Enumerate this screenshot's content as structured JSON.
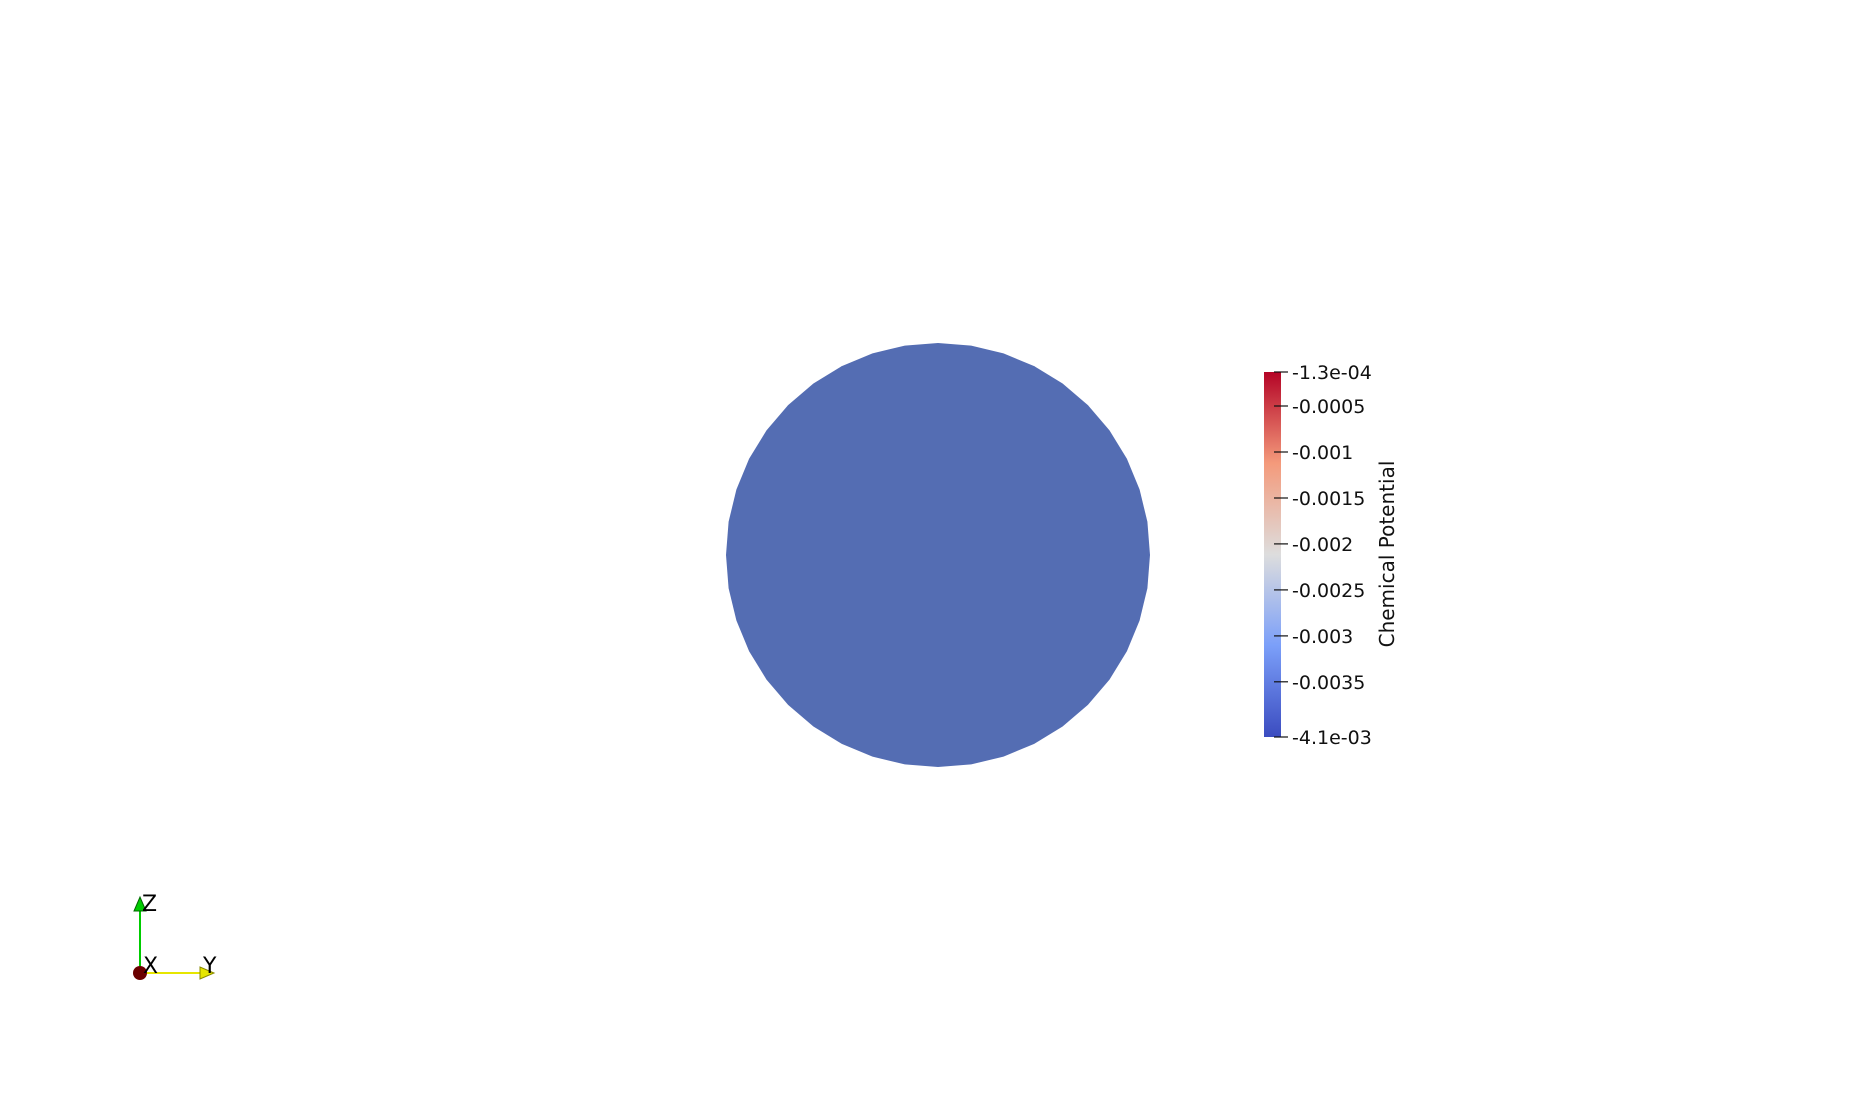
{
  "scene": {
    "background_color": "#ffffff",
    "surface_color": "#546db3",
    "surface_shape": "circular polygon"
  },
  "colorbar": {
    "title": "Chemical Potential",
    "range": [
      -0.0041,
      -0.00013
    ],
    "colormap": "coolwarm",
    "colors": {
      "min": "#3b4cc0",
      "mid": "#dddddd",
      "max": "#b40426"
    },
    "ticks": [
      {
        "value": -0.00013,
        "label": "-1.3e-04"
      },
      {
        "value": -0.0005,
        "label": "-0.0005"
      },
      {
        "value": -0.001,
        "label": "-0.001"
      },
      {
        "value": -0.0015,
        "label": "-0.0015"
      },
      {
        "value": -0.002,
        "label": "-0.002"
      },
      {
        "value": -0.0025,
        "label": "-0.0025"
      },
      {
        "value": -0.003,
        "label": "-0.003"
      },
      {
        "value": -0.0035,
        "label": "-0.0035"
      },
      {
        "value": -0.0041,
        "label": "-4.1e-03"
      }
    ]
  },
  "orientation_axes": {
    "z_label": "Z",
    "x_label": "X",
    "y_label": "Y",
    "colors": {
      "z": "#00cc00",
      "x": "#6b0000",
      "y": "#e6e600"
    }
  }
}
